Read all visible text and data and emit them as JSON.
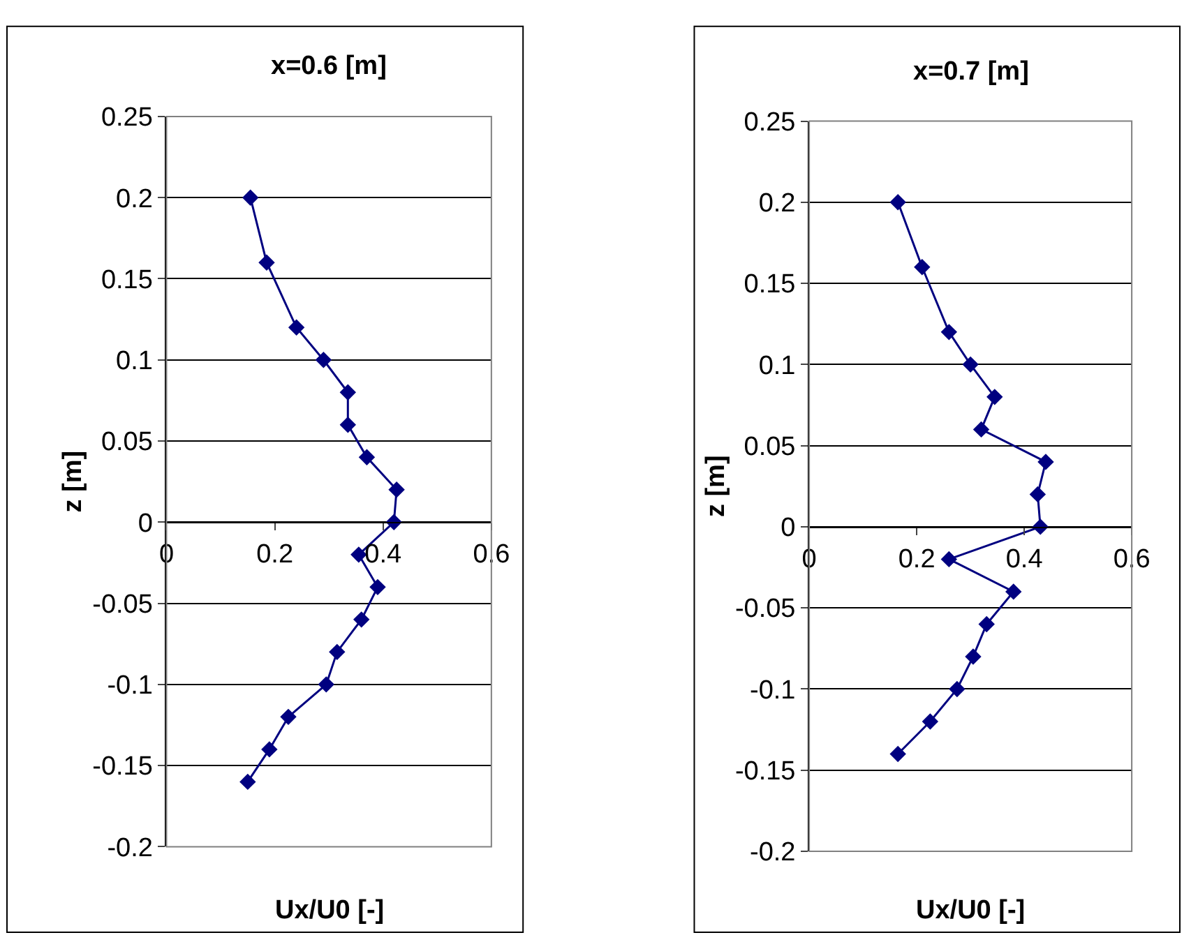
{
  "chart_data": [
    {
      "type": "line",
      "title": "x=0.6 [m]",
      "xlabel": "Ux/U0 [-]",
      "ylabel": "z [m]",
      "xlim": [
        0,
        0.6
      ],
      "xticks": [
        0,
        0.2,
        0.4,
        0.6
      ],
      "ylim": [
        -0.2,
        0.25
      ],
      "yticks": [
        -0.2,
        -0.15,
        -0.1,
        -0.05,
        0,
        0.05,
        0.1,
        0.15,
        0.2,
        0.25
      ],
      "grid": "y",
      "marker": "diamond",
      "line_style": "solid",
      "series": [
        {
          "color": "#000080",
          "x": [
            0.155,
            0.185,
            0.24,
            0.29,
            0.335,
            0.335,
            0.37,
            0.425,
            0.42,
            0.355,
            0.39,
            0.36,
            0.315,
            0.295,
            0.225,
            0.19,
            0.15
          ],
          "values": [
            0.2,
            0.16,
            0.12,
            0.1,
            0.08,
            0.06,
            0.04,
            0.02,
            0,
            -0.02,
            -0.04,
            -0.06,
            -0.08,
            -0.1,
            -0.12,
            -0.14,
            -0.16
          ]
        }
      ]
    },
    {
      "type": "line",
      "title": "x=0.7 [m]",
      "xlabel": "Ux/U0 [-]",
      "ylabel": "z [m]",
      "xlim": [
        0,
        0.6
      ],
      "xticks": [
        0,
        0.2,
        0.4,
        0.6
      ],
      "ylim": [
        -0.2,
        0.25
      ],
      "yticks": [
        -0.2,
        -0.15,
        -0.1,
        -0.05,
        0,
        0.05,
        0.1,
        0.15,
        0.2,
        0.25
      ],
      "grid": "y",
      "marker": "diamond",
      "line_style": "solid",
      "series": [
        {
          "color": "#000080",
          "x": [
            0.165,
            0.21,
            0.26,
            0.3,
            0.345,
            0.32,
            0.44,
            0.425,
            0.43,
            0.26,
            0.38,
            0.33,
            0.305,
            0.275,
            0.225,
            0.165
          ],
          "values": [
            0.2,
            0.16,
            0.12,
            0.1,
            0.08,
            0.06,
            0.04,
            0.02,
            0,
            -0.02,
            -0.04,
            -0.06,
            -0.08,
            -0.1,
            -0.12,
            -0.14
          ]
        }
      ]
    }
  ]
}
